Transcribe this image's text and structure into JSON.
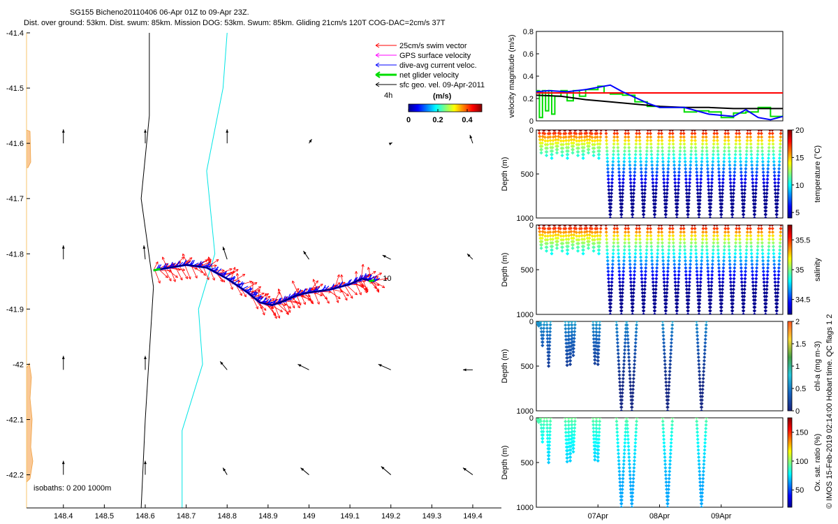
{
  "title": {
    "line1": "SG155 Bicheno20110406 06-Apr 01Z to 09-Apr 23Z.",
    "line2": "Dist. over ground: 53km. Dist. swum: 85km. Mission DOG: 53km. Swum: 85km. Gliding 21cm/s 120T COG-DAC=2cm/s 37T"
  },
  "colors": {
    "land": "#fac896",
    "land_edge": "#f0a040",
    "isobath_200": "#000000",
    "isobath_1000": "#00e5e5",
    "swim": "#ff0000",
    "gps": "#ff00ff",
    "dac": "#0000ff",
    "net": "#00dd00",
    "sfc": "#000000"
  },
  "credit": "© IMOS 15-Feb-2019 02:14:00 Hobart time. QC flags 1  2",
  "chart_data": [
    {
      "id": "map",
      "type": "scatter",
      "xlabel": "",
      "ylabel": "",
      "xlim": [
        148.31,
        149.47
      ],
      "ylim": [
        -42.26,
        -41.4
      ],
      "xticks": [
        "148.4",
        "148.5",
        "148.6",
        "148.7",
        "148.8",
        "148.9",
        "149",
        "149.1",
        "149.2",
        "149.3",
        "149.4"
      ],
      "xtick_values": [
        148.4,
        148.5,
        148.6,
        148.7,
        148.8,
        148.9,
        149.0,
        149.1,
        149.2,
        149.3,
        149.4
      ],
      "yticks": [
        "-41.4",
        "-41.5",
        "-41.6",
        "-41.7",
        "-41.8",
        "-41.9",
        "-42",
        "-42.1",
        "-42.2"
      ],
      "ytick_values": [
        -41.4,
        -41.5,
        -41.6,
        -41.7,
        -41.8,
        -41.9,
        -42.0,
        -42.1,
        -42.2
      ],
      "legend": {
        "items": [
          "25cm/s swim vector",
          "GPS surface velocity",
          "dive-avg current veloc.",
          "net glider velocity",
          "sfc geo. vel. 09-Apr-2011"
        ],
        "placement": "top-right"
      },
      "colorbar": {
        "label": "(m/s)",
        "ticks": [
          "0",
          "0.2",
          "0.4"
        ],
        "range": [
          0,
          0.5
        ],
        "side_label": "4h"
      },
      "isobaths_label": "isobaths: 0   200  1000m",
      "track_end_label": "10",
      "isobath_200": [
        [
          148.61,
          -41.4
        ],
        [
          148.61,
          -41.55
        ],
        [
          148.59,
          -41.7
        ],
        [
          148.62,
          -41.86
        ],
        [
          148.61,
          -41.98
        ],
        [
          148.6,
          -42.1
        ],
        [
          148.59,
          -42.26
        ]
      ],
      "isobath_1000": [
        [
          148.8,
          -41.4
        ],
        [
          148.79,
          -41.5
        ],
        [
          148.75,
          -41.65
        ],
        [
          148.77,
          -41.8
        ],
        [
          148.73,
          -41.9
        ],
        [
          148.74,
          -42.0
        ],
        [
          148.69,
          -42.12
        ],
        [
          148.69,
          -42.26
        ]
      ],
      "track": [
        [
          148.62,
          -41.83
        ],
        [
          148.66,
          -41.825
        ],
        [
          148.7,
          -41.82
        ],
        [
          148.75,
          -41.825
        ],
        [
          148.8,
          -41.845
        ],
        [
          148.85,
          -41.87
        ],
        [
          148.88,
          -41.888
        ],
        [
          148.91,
          -41.893
        ],
        [
          148.94,
          -41.885
        ],
        [
          148.97,
          -41.875
        ],
        [
          149.0,
          -41.87
        ],
        [
          149.05,
          -41.865
        ],
        [
          149.1,
          -41.855
        ],
        [
          149.13,
          -41.845
        ],
        [
          149.16,
          -41.85
        ]
      ],
      "geo_vectors": [
        {
          "lon": 148.4,
          "lat": -41.6,
          "u": 0,
          "v": 1
        },
        {
          "lon": 148.6,
          "lat": -41.6,
          "u": 0,
          "v": 1
        },
        {
          "lon": 148.8,
          "lat": -41.6,
          "u": 0,
          "v": 1
        },
        {
          "lon": 149.0,
          "lat": -41.6,
          "u": 0.2,
          "v": 0.3
        },
        {
          "lon": 149.2,
          "lat": -41.6,
          "u": 0.1,
          "v": 0.05
        },
        {
          "lon": 149.4,
          "lat": -41.6,
          "u": -0.2,
          "v": 0.6
        },
        {
          "lon": 148.4,
          "lat": -41.81,
          "u": 0,
          "v": 1
        },
        {
          "lon": 148.6,
          "lat": -41.81,
          "u": -0.1,
          "v": 1
        },
        {
          "lon": 148.8,
          "lat": -41.81,
          "u": -0.3,
          "v": 0.9
        },
        {
          "lon": 149.0,
          "lat": -41.81,
          "u": -0.4,
          "v": 0.6
        },
        {
          "lon": 149.2,
          "lat": -41.81,
          "u": -0.6,
          "v": 0.3
        },
        {
          "lon": 149.4,
          "lat": -41.81,
          "u": -0.4,
          "v": 0.4
        },
        {
          "lon": 148.4,
          "lat": -42.01,
          "u": 0,
          "v": 1
        },
        {
          "lon": 148.6,
          "lat": -42.01,
          "u": 0,
          "v": 1
        },
        {
          "lon": 148.8,
          "lat": -42.01,
          "u": -0.5,
          "v": 0.6
        },
        {
          "lon": 149.0,
          "lat": -42.01,
          "u": -0.8,
          "v": 0.4
        },
        {
          "lon": 149.2,
          "lat": -42.01,
          "u": -0.9,
          "v": 0.4
        },
        {
          "lon": 149.4,
          "lat": -42.01,
          "u": -0.7,
          "v": 0.0
        },
        {
          "lon": 148.4,
          "lat": -42.2,
          "u": 0,
          "v": 1
        },
        {
          "lon": 148.6,
          "lat": -42.2,
          "u": 0,
          "v": 1
        },
        {
          "lon": 148.8,
          "lat": -42.2,
          "u": -0.3,
          "v": 0.5
        },
        {
          "lon": 149.0,
          "lat": -42.2,
          "u": -0.6,
          "v": 0.5
        },
        {
          "lon": 149.2,
          "lat": -42.2,
          "u": -0.7,
          "v": 0.6
        },
        {
          "lon": 149.4,
          "lat": -42.2,
          "u": -0.7,
          "v": 0.5
        }
      ]
    },
    {
      "id": "velocity",
      "type": "line",
      "xlim": [
        0,
        4
      ],
      "ylim": [
        0,
        0.8
      ],
      "ylabel": "velocity magnitude (m/s)",
      "yticks": [
        "0",
        "0.2",
        "0.4",
        "0.6",
        "0.8"
      ],
      "ytick_values": [
        0,
        0.2,
        0.4,
        0.6,
        0.8
      ],
      "series": [
        {
          "color": "#ff0000",
          "x": [
            0,
            0.3,
            1.4,
            4.0
          ],
          "y": [
            0.25,
            0.25,
            0.25,
            0.25
          ]
        },
        {
          "color": "#0000ff",
          "x": [
            0,
            0.2,
            0.5,
            0.8,
            1.0,
            1.2,
            1.4,
            1.8,
            2.0,
            2.4,
            2.8,
            3.2,
            3.4,
            3.6,
            3.8,
            4.0
          ],
          "y": [
            0.26,
            0.27,
            0.26,
            0.28,
            0.3,
            0.32,
            0.26,
            0.16,
            0.12,
            0.12,
            0.06,
            0.04,
            0.1,
            0.03,
            0.01,
            0.04
          ]
        },
        {
          "color": "#000000",
          "x": [
            0,
            0.4,
            0.8,
            1.2,
            1.6,
            2.0,
            2.4,
            2.8,
            3.2,
            3.6,
            4.0
          ],
          "y": [
            0.23,
            0.22,
            0.19,
            0.17,
            0.15,
            0.13,
            0.12,
            0.12,
            0.11,
            0.11,
            0.11
          ]
        },
        {
          "color": "#00dd00",
          "x": [
            0,
            0.05,
            0.1,
            0.15,
            0.2,
            0.25,
            0.3,
            0.4,
            0.5,
            0.6,
            0.7,
            0.8,
            1.0,
            1.1,
            1.2,
            1.4,
            1.6,
            1.8,
            2.0,
            2.2,
            2.4,
            2.6,
            2.8,
            3.0,
            3.2,
            3.4,
            3.6,
            3.8,
            4.0
          ],
          "y": [
            0.27,
            0.03,
            0.27,
            0.09,
            0.27,
            0.06,
            0.22,
            0.27,
            0.18,
            0.27,
            0.22,
            0.28,
            0.31,
            0.25,
            0.24,
            0.23,
            0.17,
            0.13,
            0.12,
            0.12,
            0.08,
            0.09,
            0.08,
            0.03,
            0.07,
            0.08,
            0.12,
            0.04,
            0.05
          ]
        }
      ]
    },
    {
      "id": "temperature",
      "type": "scatter",
      "ylabel": "Depth (m)",
      "ylim": [
        0,
        1000
      ],
      "yticks": [
        "0",
        "500",
        "1000"
      ],
      "ytick_values": [
        0,
        500,
        1000
      ],
      "colorbar": {
        "label": "temperature (°C)",
        "ticks": [
          "5",
          "10",
          "15",
          "20"
        ],
        "tick_values": [
          5,
          10,
          15,
          20
        ],
        "range": [
          4,
          20
        ]
      },
      "surface_value": 20,
      "deep_value": 4
    },
    {
      "id": "salinity",
      "type": "scatter",
      "ylabel": "Depth (m)",
      "ylim": [
        0,
        1000
      ],
      "yticks": [
        "0",
        "500",
        "1000"
      ],
      "ytick_values": [
        0,
        500,
        1000
      ],
      "colorbar": {
        "label": "salinity",
        "ticks": [
          "34.5",
          "35",
          "35.5"
        ],
        "tick_values": [
          34.5,
          35,
          35.5
        ],
        "range": [
          34.25,
          35.75
        ]
      },
      "surface_value": 35.75,
      "deep_value": 34.25
    },
    {
      "id": "chla",
      "type": "scatter",
      "ylabel": "Depth (m)",
      "ylim": [
        0,
        1000
      ],
      "yticks": [
        "0",
        "500",
        "1000"
      ],
      "ytick_values": [
        0,
        500,
        1000
      ],
      "colorbar": {
        "label": "chl-a (mg m-3)",
        "ticks": [
          "0",
          "0.5",
          "1",
          "1.5",
          "2"
        ],
        "tick_values": [
          0,
          0.5,
          1,
          1.5,
          2
        ],
        "range": [
          0,
          2
        ]
      },
      "surface_value": 0.7,
      "deep_value": 0.05
    },
    {
      "id": "oxygen",
      "type": "scatter",
      "ylabel": "Depth (m)",
      "ylim": [
        0,
        1000
      ],
      "yticks": [
        "0",
        "500",
        "1000"
      ],
      "ytick_values": [
        0,
        500,
        1000
      ],
      "xticks": [
        "07Apr",
        "08Apr",
        "09Apr"
      ],
      "xtick_values": [
        1,
        2,
        3
      ],
      "colorbar": {
        "label": "Ox. sat. ratio (%)",
        "ticks": [
          "50",
          "100",
          "150"
        ],
        "tick_values": [
          50,
          100,
          150
        ],
        "range": [
          20,
          175
        ]
      },
      "surface_value": 95,
      "deep_value": 65
    }
  ]
}
